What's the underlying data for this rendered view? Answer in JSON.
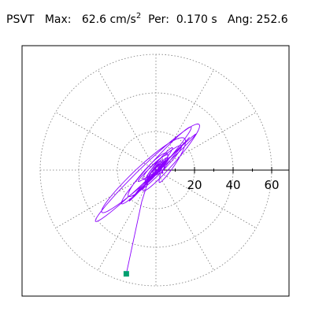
{
  "header": {
    "name": "PSVT",
    "max_label": "Max:",
    "max_value": "62.6",
    "max_unit": "cm/s",
    "max_unit_exp": "2",
    "per_label": "Per:",
    "per_value": "0.170 s",
    "ang_label": "Ang:",
    "ang_value": "252.6"
  },
  "chart_data": {
    "type": "polar-trace",
    "title": "",
    "radial_ticks": [
      "20",
      "40",
      "60"
    ],
    "radial_max": 70,
    "angular_grid_step_deg": 30,
    "grid": true,
    "peak": {
      "magnitude": 62.6,
      "angle_deg": 252.6,
      "period_s": 0.17
    },
    "colors": {
      "trace": "#8b00ff",
      "peak_marker": "#00a070",
      "grid": "#777777",
      "axis": "#000000"
    }
  }
}
